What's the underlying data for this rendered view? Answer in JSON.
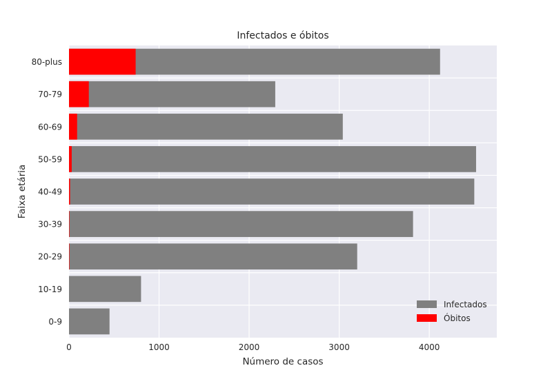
{
  "chart_data": {
    "type": "bar",
    "orientation": "horizontal",
    "stacked": "overlay",
    "title": "Infectados e óbitos",
    "xlabel": "Número de casos",
    "ylabel": "Faixa etária",
    "categories": [
      "0-9",
      "10-19",
      "20-29",
      "30-39",
      "40-49",
      "50-59",
      "60-69",
      "70-79",
      "80-plus"
    ],
    "series": [
      {
        "name": "Infectados",
        "color": "#808080",
        "values": [
          450,
          800,
          3200,
          3820,
          4500,
          4520,
          3040,
          2290,
          4120
        ]
      },
      {
        "name": "Óbitos",
        "color": "#ff0000",
        "values": [
          0,
          0,
          1,
          3,
          12,
          30,
          90,
          220,
          740
        ]
      }
    ],
    "xlim": [
      0,
      4750
    ],
    "xticks": [
      0,
      1000,
      2000,
      3000,
      4000
    ],
    "xtick_labels": [
      "0",
      "1000",
      "2000",
      "3000",
      "4000"
    ],
    "grid": true,
    "legend_position": "lower-right",
    "background": "#eaeaf2"
  }
}
